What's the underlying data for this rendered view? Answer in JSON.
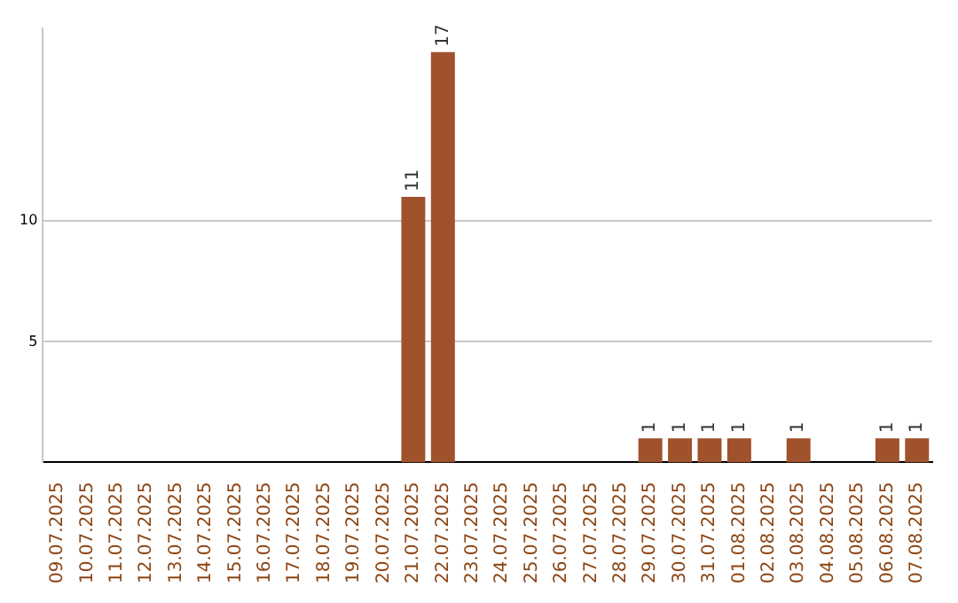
{
  "chart_data": {
    "type": "bar",
    "categories": [
      "09.07.2025",
      "10.07.2025",
      "11.07.2025",
      "12.07.2025",
      "13.07.2025",
      "14.07.2025",
      "15.07.2025",
      "16.07.2025",
      "17.07.2025",
      "18.07.2025",
      "19.07.2025",
      "20.07.2025",
      "21.07.2025",
      "22.07.2025",
      "23.07.2025",
      "24.07.2025",
      "25.07.2025",
      "26.07.2025",
      "27.07.2025",
      "28.07.2025",
      "29.07.2025",
      "30.07.2025",
      "31.07.2025",
      "01.08.2025",
      "02.08.2025",
      "03.08.2025",
      "04.08.2025",
      "05.08.2025",
      "06.08.2025",
      "07.08.2025"
    ],
    "values": [
      0,
      0,
      0,
      0,
      0,
      0,
      0,
      0,
      0,
      0,
      0,
      0,
      11,
      17,
      0,
      0,
      0,
      0,
      0,
      0,
      1,
      1,
      1,
      1,
      0,
      1,
      0,
      0,
      1,
      1
    ],
    "value_labels": [
      null,
      null,
      null,
      null,
      null,
      null,
      null,
      null,
      null,
      null,
      null,
      null,
      "11",
      "17",
      null,
      null,
      null,
      null,
      null,
      null,
      "1",
      "1",
      "1",
      "1",
      null,
      "1",
      null,
      null,
      "1",
      "1"
    ],
    "color": "#a0522d",
    "ylim": [
      0,
      18
    ],
    "yticks": [
      5,
      10
    ],
    "grid": "y"
  }
}
